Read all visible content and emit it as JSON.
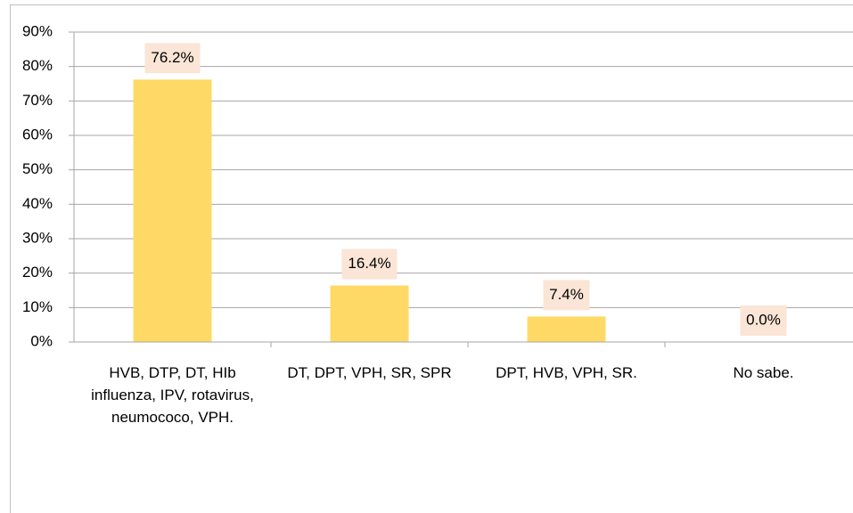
{
  "chart_data": {
    "type": "bar",
    "categories": [
      "HVB, DTP, DT, HIb influenza, IPV, rotavirus, neumococo, VPH.",
      "DT, DPT, VPH, SR, SPR",
      "DPT, HVB, VPH, SR.",
      "No sabe."
    ],
    "values": [
      76.2,
      16.4,
      7.4,
      0.0
    ],
    "value_labels": [
      "76.2%",
      "16.4%",
      "7.4%",
      "0.0%"
    ],
    "color": "#ffd966",
    "label_background": "#fbe5d6",
    "ylim": [
      0,
      90
    ],
    "yticks": [
      {
        "value": 0,
        "label": "0%"
      },
      {
        "value": 10,
        "label": "10%"
      },
      {
        "value": 20,
        "label": "20%"
      },
      {
        "value": 30,
        "label": "30%"
      },
      {
        "value": 40,
        "label": "40%"
      },
      {
        "value": 50,
        "label": "50%"
      },
      {
        "value": 60,
        "label": "60%"
      },
      {
        "value": 70,
        "label": "70%"
      },
      {
        "value": 80,
        "label": "80%"
      },
      {
        "value": 90,
        "label": "90%"
      }
    ],
    "grid": true
  }
}
